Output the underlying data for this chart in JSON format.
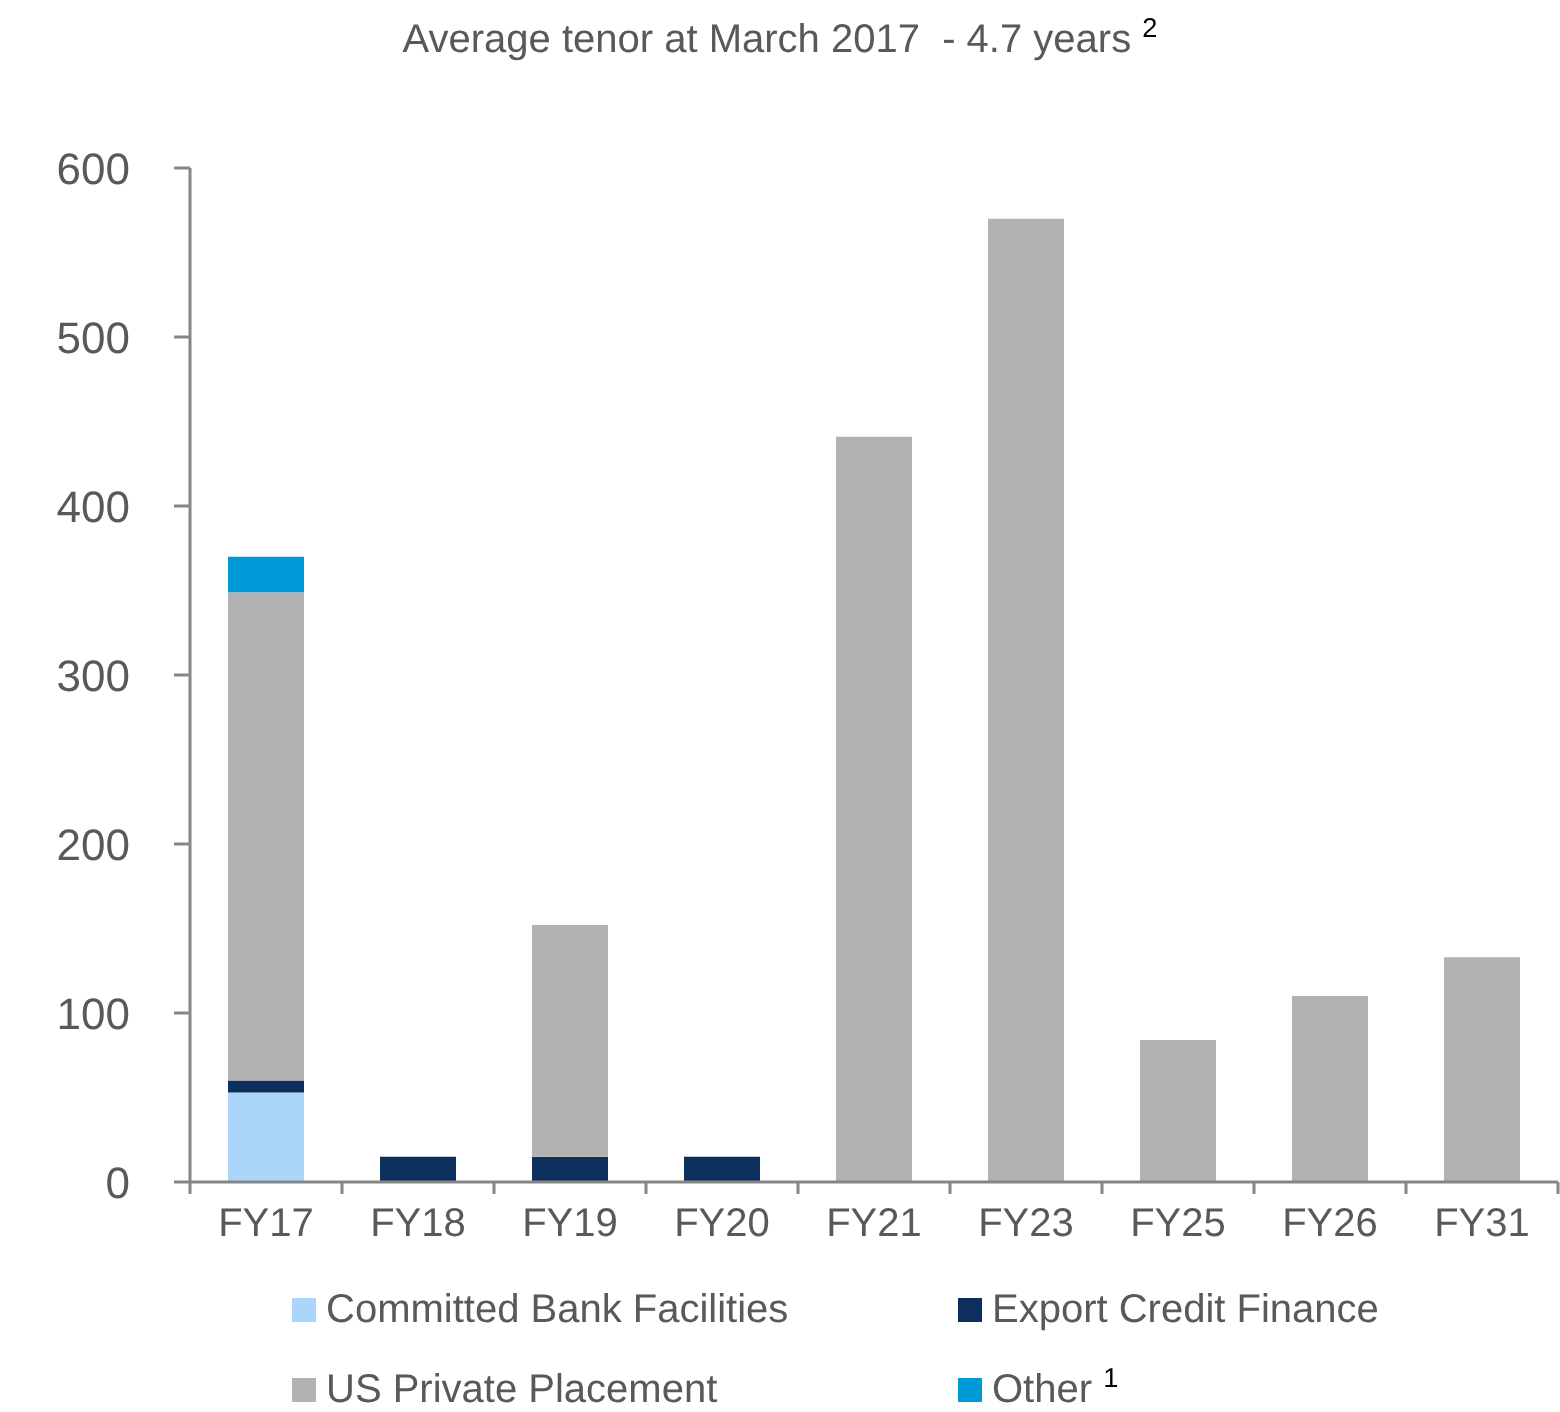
{
  "chart_data": {
    "type": "bar",
    "title": "Average tenor at March 2017  - 4.7 years $^{2}$",
    "categories": [
      "FY17",
      "FY18",
      "FY19",
      "FY20",
      "FY21",
      "FY23",
      "FY25",
      "FY26",
      "FY31"
    ],
    "stacked": true,
    "series": [
      {
        "name": "Committed Bank Facilities",
        "color": "#abd5fb",
        "values": [
          53,
          null,
          null,
          null,
          null,
          null,
          null,
          null,
          null
        ]
      },
      {
        "name": "Export Credit Finance",
        "color": "#0d2f5e",
        "values": [
          7,
          15,
          15,
          15,
          null,
          null,
          null,
          null,
          null
        ]
      },
      {
        "name": "US Private Placement",
        "color": "#b2b2b2",
        "values": [
          289,
          null,
          137,
          null,
          441,
          570,
          84,
          110,
          133
        ]
      },
      {
        "name": "Other $^{1}$",
        "color": "#0099d8",
        "values": [
          21,
          null,
          null,
          null,
          null,
          null,
          null,
          null,
          null
        ]
      }
    ],
    "ylim": [
      0,
      600
    ],
    "yticks": [
      0,
      100,
      200,
      300,
      400,
      500,
      600
    ],
    "legend": "bottom"
  }
}
